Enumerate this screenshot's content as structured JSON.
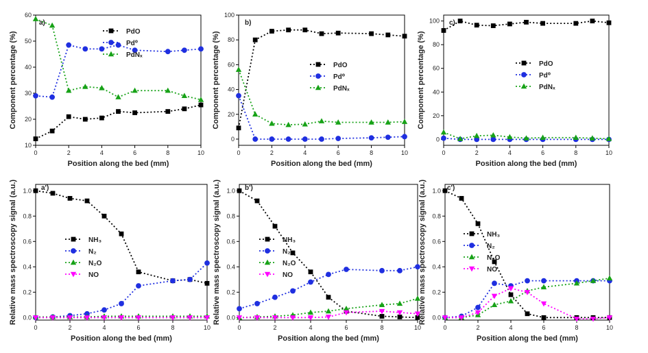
{
  "colors": {
    "PdO": "#000000",
    "Pd0": "#1f2fe0",
    "PdNx": "#17a217",
    "NH3": "#000000",
    "N2": "#1f2fe0",
    "N2O": "#17a217",
    "NO": "#ff00ff"
  },
  "chart_data": [
    {
      "type": "scatter",
      "panel": "a)",
      "xlabel": "Position along the bed (mm)",
      "ylabel": "Component percentage (%)",
      "xlim": [
        0,
        10
      ],
      "ylim": [
        10,
        60
      ],
      "xticks": [
        "0",
        "2",
        "4",
        "6",
        "8",
        "10"
      ],
      "yticks": [
        "10",
        "20",
        "30",
        "40",
        "50",
        "60"
      ],
      "legend_position": "upper-center",
      "series": [
        {
          "name": "PdO",
          "marker": "square",
          "color_key": "PdO",
          "x": [
            0,
            1,
            2,
            3,
            4,
            5,
            6,
            8,
            9,
            10
          ],
          "y": [
            12.5,
            15.5,
            21,
            20,
            20.5,
            23,
            22.5,
            23,
            24,
            25.5
          ]
        },
        {
          "name": "Pd⁰",
          "marker": "circle",
          "color_key": "Pd0",
          "x": [
            0,
            1,
            2,
            3,
            4,
            5,
            6,
            8,
            9,
            10
          ],
          "y": [
            29,
            28.5,
            48.5,
            47,
            47,
            48.5,
            46.5,
            46,
            46.5,
            47
          ]
        },
        {
          "name": "PdNₓ",
          "marker": "triangle-up",
          "color_key": "PdNx",
          "x": [
            0,
            1,
            2,
            3,
            4,
            5,
            6,
            8,
            9,
            10
          ],
          "y": [
            58.5,
            56,
            31,
            32.5,
            32,
            28.5,
            31,
            31,
            29,
            27.5
          ]
        }
      ]
    },
    {
      "type": "scatter",
      "panel": "b)",
      "xlabel": "Position along the bed (mm)",
      "ylabel": "Component percentage (%)",
      "xlim": [
        0,
        10
      ],
      "ylim": [
        -5,
        100
      ],
      "xticks": [
        "0",
        "2",
        "4",
        "6",
        "8",
        "10"
      ],
      "yticks": [
        "0",
        "20",
        "40",
        "60",
        "80",
        "100"
      ],
      "legend_position": "center",
      "series": [
        {
          "name": "PdO",
          "marker": "square",
          "color_key": "PdO",
          "x": [
            0,
            1,
            2,
            3,
            4,
            5,
            6,
            8,
            9,
            10
          ],
          "y": [
            9,
            80,
            87,
            88,
            88,
            85,
            85.5,
            85,
            84,
            83
          ]
        },
        {
          "name": "Pd⁰",
          "marker": "circle",
          "color_key": "Pd0",
          "x": [
            0,
            1,
            2,
            3,
            4,
            5,
            6,
            8,
            9,
            10
          ],
          "y": [
            35,
            0,
            0,
            0,
            0,
            0,
            0.5,
            1,
            1.5,
            2
          ]
        },
        {
          "name": "PdNₓ",
          "marker": "triangle-up",
          "color_key": "PdNx",
          "x": [
            0,
            1,
            2,
            3,
            4,
            5,
            6,
            8,
            9,
            10
          ],
          "y": [
            56,
            20,
            12.5,
            11.5,
            12,
            14.5,
            13.5,
            13.5,
            13.5,
            14
          ]
        }
      ]
    },
    {
      "type": "scatter",
      "panel": "c)",
      "xlabel": "Position along the bed (mm)",
      "ylabel": "Component percentage (%)",
      "xlim": [
        0,
        10
      ],
      "ylim": [
        -5,
        105
      ],
      "xticks": [
        "0",
        "2",
        "4",
        "6",
        "8",
        "10"
      ],
      "yticks": [
        "0",
        "20",
        "40",
        "60",
        "80",
        "100"
      ],
      "legend_position": "center",
      "series": [
        {
          "name": "PdO",
          "marker": "square",
          "color_key": "PdO",
          "x": [
            0,
            1,
            2,
            3,
            4,
            5,
            6,
            8,
            9,
            10
          ],
          "y": [
            92,
            100,
            96.5,
            96,
            97.5,
            99,
            98,
            98,
            100,
            98.5
          ]
        },
        {
          "name": "Pd⁰",
          "marker": "circle",
          "color_key": "Pd0",
          "x": [
            0,
            1,
            2,
            3,
            4,
            5,
            6,
            8,
            9,
            10
          ],
          "y": [
            1,
            0,
            0,
            0,
            0,
            0,
            0,
            0,
            0,
            0
          ]
        },
        {
          "name": "PdNₓ",
          "marker": "triangle-up",
          "color_key": "PdNx",
          "x": [
            0,
            1,
            2,
            3,
            4,
            5,
            6,
            8,
            9,
            10
          ],
          "y": [
            6,
            0.5,
            3,
            3.5,
            2,
            1,
            1.5,
            1.5,
            1,
            0.5
          ]
        }
      ]
    },
    {
      "type": "scatter",
      "panel": "a')",
      "xlabel": "Position along the bed (mm)",
      "ylabel": "Relative mass spectroscopy signal (a.u.)",
      "xlim": [
        0,
        10
      ],
      "ylim": [
        -0.02,
        1.05
      ],
      "xticks": [
        "0",
        "2",
        "4",
        "6",
        "8",
        "10"
      ],
      "yticks": [
        "0.0",
        "0.2",
        "0.4",
        "0.6",
        "0.8",
        "1.0"
      ],
      "legend_position": "center-left",
      "series": [
        {
          "name": "NH₃",
          "marker": "square",
          "color_key": "NH3",
          "x": [
            0,
            1,
            2,
            3,
            4,
            5,
            6,
            8,
            9,
            10
          ],
          "y": [
            1.0,
            0.98,
            0.94,
            0.92,
            0.8,
            0.66,
            0.36,
            0.29,
            0.3,
            0.27
          ]
        },
        {
          "name": "N₂",
          "marker": "circle",
          "color_key": "N2",
          "x": [
            0,
            1,
            2,
            3,
            4,
            5,
            6,
            8,
            9,
            10
          ],
          "y": [
            0.0,
            0.005,
            0.015,
            0.03,
            0.06,
            0.11,
            0.25,
            0.29,
            0.3,
            0.43
          ]
        },
        {
          "name": "N₂O",
          "marker": "triangle-up",
          "color_key": "N2O",
          "x": [
            0,
            1,
            2,
            3,
            4,
            5,
            6,
            8,
            9,
            10
          ],
          "y": [
            0.005,
            0.005,
            0.005,
            0.005,
            0.01,
            0.01,
            0.01,
            0.01,
            0.01,
            0.01
          ]
        },
        {
          "name": "NO",
          "marker": "triangle-down",
          "color_key": "NO",
          "x": [
            0,
            1,
            2,
            3,
            4,
            5,
            6,
            8,
            9,
            10
          ],
          "y": [
            0,
            0,
            0,
            0,
            0,
            0,
            0,
            0,
            0,
            0
          ]
        }
      ]
    },
    {
      "type": "scatter",
      "panel": "b')",
      "xlabel": "Position along the bed (mm)",
      "ylabel": "Relative mass spectroscopy signal (a.u.)",
      "xlim": [
        0,
        10
      ],
      "ylim": [
        -0.02,
        1.05
      ],
      "xticks": [
        "0",
        "2",
        "4",
        "6",
        "8",
        "10"
      ],
      "yticks": [
        "0.0",
        "0.2",
        "0.4",
        "0.6",
        "0.8",
        "1.0"
      ],
      "legend_position": "center-left",
      "series": [
        {
          "name": "NH₃",
          "marker": "square",
          "color_key": "NH3",
          "x": [
            0,
            1,
            2,
            3,
            4,
            5,
            6,
            8,
            9,
            10
          ],
          "y": [
            1.0,
            0.92,
            0.72,
            0.51,
            0.36,
            0.16,
            0.05,
            0.01,
            0.005,
            0.0
          ]
        },
        {
          "name": "N₂",
          "marker": "circle",
          "color_key": "N2",
          "x": [
            0,
            1,
            2,
            3,
            4,
            5,
            6,
            8,
            9,
            10
          ],
          "y": [
            0.07,
            0.11,
            0.16,
            0.21,
            0.28,
            0.34,
            0.38,
            0.37,
            0.37,
            0.4
          ]
        },
        {
          "name": "N₂O",
          "marker": "triangle-up",
          "color_key": "N2O",
          "x": [
            0,
            1,
            2,
            3,
            4,
            5,
            6,
            8,
            9,
            10
          ],
          "y": [
            0.0,
            0.005,
            0.01,
            0.02,
            0.04,
            0.05,
            0.07,
            0.1,
            0.11,
            0.15
          ]
        },
        {
          "name": "NO",
          "marker": "triangle-down",
          "color_key": "NO",
          "x": [
            0,
            1,
            2,
            3,
            4,
            5,
            6,
            8,
            9,
            10
          ],
          "y": [
            0,
            0,
            0,
            0,
            0,
            0.005,
            0.04,
            0.05,
            0.04,
            0.03
          ]
        }
      ]
    },
    {
      "type": "scatter",
      "panel": "c')",
      "xlabel": "Position along the bed (mm)",
      "ylabel": "Relative mass spectroscopy signal (a.u.)",
      "xlim": [
        0,
        10
      ],
      "ylim": [
        -0.02,
        1.05
      ],
      "xticks": [
        "0",
        "2",
        "4",
        "6",
        "8",
        "10"
      ],
      "yticks": [
        "0.0",
        "0.2",
        "0.4",
        "0.6",
        "0.8",
        "1.0"
      ],
      "legend_position": "center-left",
      "series": [
        {
          "name": "NH₃",
          "marker": "square",
          "color_key": "NH3",
          "x": [
            0,
            1,
            2,
            3,
            4,
            5,
            6,
            8,
            9,
            10
          ],
          "y": [
            1.0,
            0.94,
            0.74,
            0.44,
            0.18,
            0.03,
            0.0,
            0.0,
            0.0,
            0.0
          ]
        },
        {
          "name": "N₂",
          "marker": "circle",
          "color_key": "N2",
          "x": [
            0,
            1,
            2,
            3,
            4,
            5,
            6,
            8,
            9,
            10
          ],
          "y": [
            0.0,
            0.01,
            0.08,
            0.27,
            0.25,
            0.29,
            0.29,
            0.29,
            0.29,
            0.29
          ]
        },
        {
          "name": "N₂O",
          "marker": "triangle-up",
          "color_key": "N2O",
          "x": [
            0,
            1,
            2,
            3,
            4,
            5,
            6,
            8,
            9,
            10
          ],
          "y": [
            0.0,
            0.0,
            0.02,
            0.1,
            0.13,
            0.21,
            0.24,
            0.27,
            0.29,
            0.31
          ]
        },
        {
          "name": "NO",
          "marker": "triangle-down",
          "color_key": "NO",
          "x": [
            0,
            1,
            2,
            3,
            4,
            5,
            6,
            8,
            9,
            10
          ],
          "y": [
            0.0,
            0.0,
            0.04,
            0.17,
            0.23,
            0.2,
            0.11,
            -0.01,
            -0.01,
            0.0
          ]
        }
      ]
    }
  ]
}
